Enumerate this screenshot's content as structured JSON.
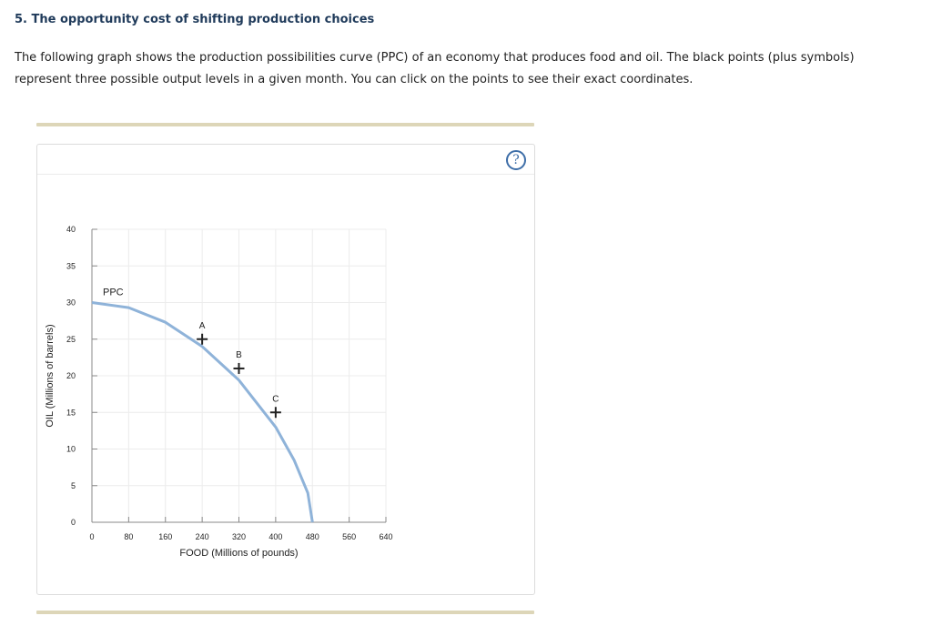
{
  "question": {
    "title": "5. The opportunity cost of shifting production choices",
    "text": "The following graph shows the production possibilities curve (PPC) of an economy that produces food and oil. The black points (plus symbols) represent three possible output levels in a given month. You can click on the points to see their exact coordinates."
  },
  "help": {
    "label": "?",
    "icon": "question-circle-icon"
  },
  "colors": {
    "curve": "#8fb3d9",
    "point": "#222222",
    "rule": "#ddd6b8",
    "grid": "#ececec",
    "help": "#3e6ea8"
  },
  "chart_data": {
    "type": "line",
    "xlabel": "FOOD (Millions of pounds)",
    "ylabel": "OIL (Millions of barrels)",
    "xlim": [
      0,
      640
    ],
    "ylim": [
      0,
      40
    ],
    "xticks": [
      0,
      80,
      160,
      240,
      320,
      400,
      480,
      560,
      640
    ],
    "yticks": [
      0,
      5,
      10,
      15,
      20,
      25,
      30,
      35,
      40
    ],
    "grid": true,
    "series": [
      {
        "name": "PPC",
        "x": [
          0,
          80,
          160,
          240,
          320,
          400,
          440,
          470,
          480
        ],
        "y": [
          30,
          29.3,
          27.3,
          24,
          19.4,
          13,
          8.5,
          4,
          0
        ]
      }
    ],
    "points": [
      {
        "label": "A",
        "x": 240,
        "y": 25
      },
      {
        "label": "B",
        "x": 320,
        "y": 21
      },
      {
        "label": "C",
        "x": 400,
        "y": 15
      }
    ]
  }
}
